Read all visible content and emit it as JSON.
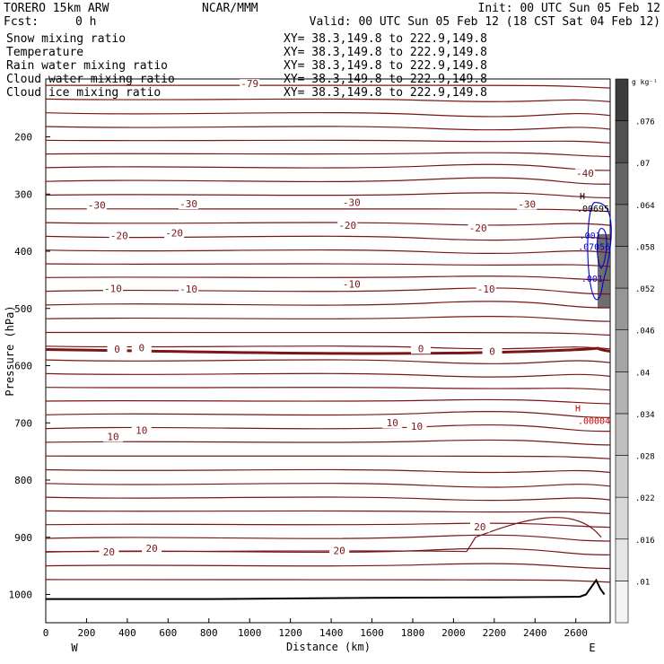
{
  "header": {
    "model": "TORERO  15km ARW",
    "center": "NCAR/MMM",
    "init": "Init: 00 UTC Sun 05 Feb 12",
    "fcst_label": "Fcst:",
    "fcst_value": "0 h",
    "valid": "Valid: 00 UTC Sun 05 Feb 12 (18 CST Sat 04 Feb 12)"
  },
  "fields": [
    {
      "name": "Snow mixing ratio",
      "xy": "XY=  38.3,149.8 to 222.9,149.8",
      "color": "#000000",
      "xy_color": "#000000"
    },
    {
      "name": "Temperature",
      "xy": "XY=  38.3,149.8 to 222.9,149.8",
      "color": "#cc0000",
      "xy_color": "#cc0000"
    },
    {
      "name": "Rain water mixing ratio",
      "xy": "XY=  38.3,149.8 to 222.9,149.8",
      "color": "#cc0000",
      "xy_color": "#cc0000"
    },
    {
      "name": "Cloud water mixing ratio",
      "xy": "XY=  38.3,149.8 to 222.9,149.8",
      "color": "#0000cc",
      "xy_color": "#000000"
    },
    {
      "name": "Cloud ice mixing ratio",
      "xy": "XY=  38.3,149.8 to 222.9,149.8",
      "color": "#000000",
      "xy_color": "#000000"
    }
  ],
  "chart_data": {
    "type": "contour cross-section",
    "xlabel": "Distance (km)",
    "ylabel": "Pressure (hPa)",
    "xlim": [
      0,
      2750
    ],
    "ylim": [
      1050,
      100
    ],
    "x_ticks": [
      0,
      200,
      400,
      600,
      800,
      1000,
      1200,
      1400,
      1600,
      1800,
      2000,
      2200,
      2400,
      2600
    ],
    "y_ticks": [
      200,
      300,
      400,
      500,
      600,
      700,
      800,
      900,
      1000
    ],
    "x_end_labels": {
      "left": "W",
      "right": "E"
    },
    "colorbar": {
      "unit": "g kg⁻¹",
      "labels": [
        ".01",
        ".016",
        ".022",
        ".028",
        ".034",
        ".04",
        ".046",
        ".052",
        ".058",
        ".064",
        ".07",
        ".076"
      ],
      "levels": [
        0.01,
        0.016,
        0.022,
        0.028,
        0.034,
        0.04,
        0.046,
        0.052,
        0.058,
        0.064,
        0.07,
        0.076,
        0.082
      ]
    },
    "temperature_contours": {
      "color": "#7a1616",
      "emphasized_label": "0",
      "labels": [
        {
          "text": "-79",
          "x": 1000,
          "p": 110
        },
        {
          "text": "-40",
          "x": 2645,
          "p": 267
        },
        {
          "text": "-30",
          "x": 250,
          "p": 322
        },
        {
          "text": "-30",
          "x": 700,
          "p": 320
        },
        {
          "text": "-30",
          "x": 1500,
          "p": 318
        },
        {
          "text": "-30",
          "x": 2360,
          "p": 321
        },
        {
          "text": "-20",
          "x": 360,
          "p": 376
        },
        {
          "text": "-20",
          "x": 630,
          "p": 371
        },
        {
          "text": "-20",
          "x": 1480,
          "p": 358
        },
        {
          "text": "-20",
          "x": 2120,
          "p": 362
        },
        {
          "text": "-10",
          "x": 330,
          "p": 468
        },
        {
          "text": "-10",
          "x": 700,
          "p": 469
        },
        {
          "text": "-10",
          "x": 1500,
          "p": 460
        },
        {
          "text": "-10",
          "x": 2160,
          "p": 469
        },
        {
          "text": "0",
          "x": 350,
          "p": 574
        },
        {
          "text": "0",
          "x": 470,
          "p": 572
        },
        {
          "text": "0",
          "x": 1840,
          "p": 573
        },
        {
          "text": "0",
          "x": 2190,
          "p": 578
        },
        {
          "text": "10",
          "x": 330,
          "p": 727
        },
        {
          "text": "10",
          "x": 470,
          "p": 716
        },
        {
          "text": "10",
          "x": 1700,
          "p": 703
        },
        {
          "text": "10",
          "x": 1820,
          "p": 709
        },
        {
          "text": "20",
          "x": 310,
          "p": 929
        },
        {
          "text": "20",
          "x": 520,
          "p": 922
        },
        {
          "text": "20",
          "x": 1440,
          "p": 926
        },
        {
          "text": "20",
          "x": 2130,
          "p": 885
        }
      ],
      "highs": [
        {
          "symbol": "H",
          "value": ".00004",
          "x": 2610,
          "p": 680
        }
      ]
    },
    "cloud_water": {
      "color": "#0000cc",
      "labels": [
        {
          "text": ".001",
          "x": 2670,
          "p": 378
        },
        {
          "text": ".07056",
          "x": 2690,
          "p": 398
        },
        {
          "text": ".001",
          "x": 2680,
          "p": 453
        }
      ],
      "highs": [
        {
          "symbol": "H",
          "value": ".00695",
          "x": 2700,
          "p": 325
        }
      ]
    },
    "ice_shading": {
      "color": "#555555",
      "x_range": [
        2700,
        2740
      ],
      "p_range": [
        370,
        500
      ]
    },
    "terrain": {
      "x": [
        0,
        800,
        1600,
        2200,
        2620,
        2650,
        2680,
        2700,
        2720,
        2740
      ],
      "p": [
        1008,
        1008,
        1006,
        1005,
        1004,
        1000,
        985,
        975,
        990,
        1000
      ]
    }
  }
}
